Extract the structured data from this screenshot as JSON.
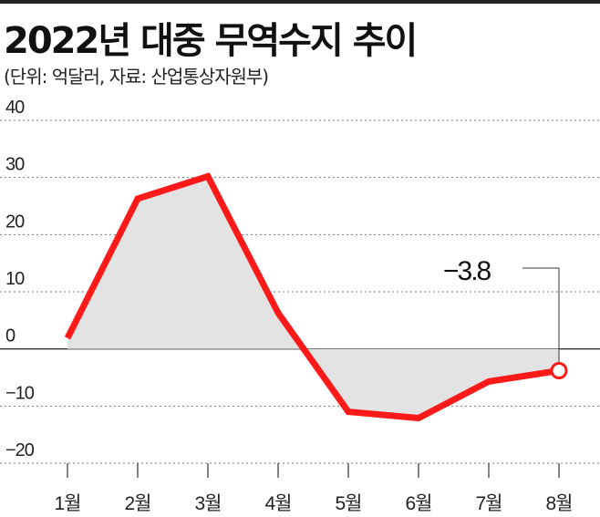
{
  "chart_data": {
    "type": "area",
    "title": "2022년 대중 무역수지 추이",
    "subtitle": "(단위: 억달러, 자료: 산업통상자원부)",
    "categories": [
      "1월",
      "2월",
      "3월",
      "4월",
      "5월",
      "6월",
      "7월",
      "8월"
    ],
    "values": [
      1.9,
      26.3,
      30.2,
      6.3,
      -11,
      -12.1,
      -5.7,
      -3.8
    ],
    "ylim": [
      -20,
      40
    ],
    "yticks": [
      40,
      30,
      20,
      10,
      0,
      "−10",
      "−20"
    ],
    "callout_label": "−3.8",
    "grid": true,
    "colors": {
      "line": "#ff1a1a",
      "fill": "#e3e3e3",
      "grid": "#777777"
    }
  }
}
